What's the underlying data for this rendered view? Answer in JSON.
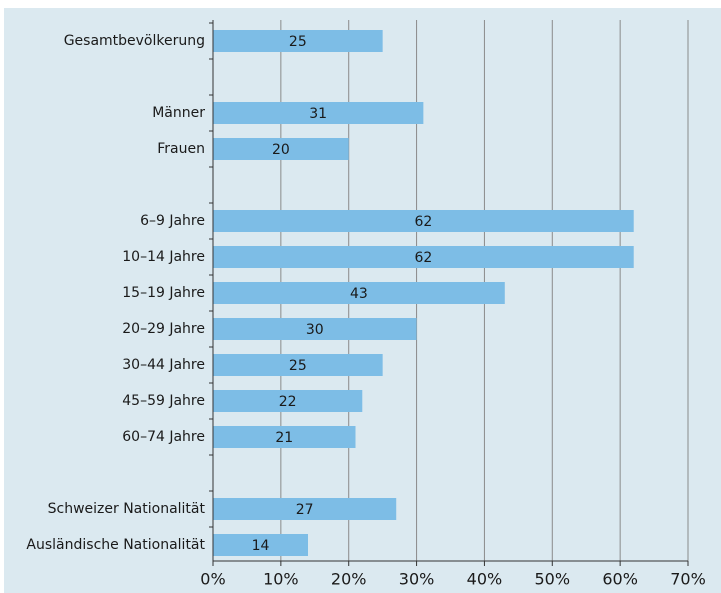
{
  "chart_data": {
    "type": "bar",
    "orientation": "horizontal",
    "categories": [
      "Gesamtbevölkerung",
      null,
      "Männer",
      "Frauen",
      null,
      "6–9 Jahre",
      "10–14 Jahre",
      "15–19 Jahre",
      "20–29 Jahre",
      "30–44 Jahre",
      "45–59 Jahre",
      "60–74 Jahre",
      null,
      "Schweizer Nationalität",
      "Ausländische Nationalität"
    ],
    "values": [
      25,
      null,
      31,
      20,
      null,
      62,
      62,
      43,
      30,
      25,
      22,
      21,
      null,
      27,
      14
    ],
    "color": "#7dbde6",
    "xlim": [
      0,
      70
    ],
    "xticks": [
      {
        "value": 0,
        "label": "0%"
      },
      {
        "value": 10,
        "label": "10%"
      },
      {
        "value": 20,
        "label": "20%"
      },
      {
        "value": 30,
        "label": "30%"
      },
      {
        "value": 40,
        "label": "40%"
      },
      {
        "value": 50,
        "label": "50%"
      },
      {
        "value": 60,
        "label": "60%"
      },
      {
        "value": 70,
        "label": "70%"
      }
    ],
    "grid": true
  }
}
